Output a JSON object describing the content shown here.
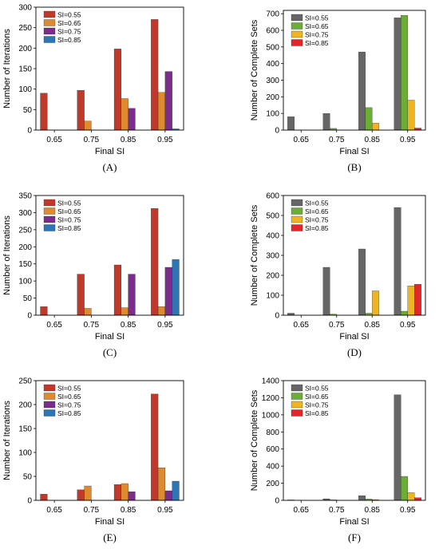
{
  "chart_data": [
    {
      "type": "bar",
      "panel": "(A)",
      "xlabel": "Final SI",
      "ylabel": "Number of Iterations",
      "categories": [
        "0.65",
        "0.75",
        "0.85",
        "0.95"
      ],
      "ylim": [
        0,
        300
      ],
      "yticks": [
        0,
        50,
        100,
        150,
        200,
        250,
        300
      ],
      "legend_position": "top-left",
      "series": [
        {
          "name": "SI=0.55",
          "color": "#C0392B",
          "values": [
            90,
            97,
            198,
            270
          ]
        },
        {
          "name": "SI=0.65",
          "color": "#E08A2E",
          "values": [
            0,
            22,
            77,
            92
          ]
        },
        {
          "name": "SI=0.75",
          "color": "#7B2D8E",
          "values": [
            0,
            0,
            53,
            143
          ]
        },
        {
          "name": "SI=0.85",
          "color": "#2E75B6",
          "values": [
            0,
            0,
            0,
            3
          ]
        }
      ]
    },
    {
      "type": "bar",
      "panel": "(B)",
      "xlabel": "Final SI",
      "ylabel": "Number of Complete Sets",
      "categories": [
        "0.65",
        "0.75",
        "0.85",
        "0.95"
      ],
      "ylim": [
        0,
        720
      ],
      "yticks": [
        0,
        100,
        200,
        300,
        400,
        500,
        600,
        700
      ],
      "legend_position": "top-left",
      "series": [
        {
          "name": "SI=0.55",
          "color": "#666666",
          "values": [
            80,
            100,
            470,
            675
          ]
        },
        {
          "name": "SI=0.65",
          "color": "#6AAE32",
          "values": [
            0,
            10,
            135,
            690
          ]
        },
        {
          "name": "SI=0.75",
          "color": "#F0B323",
          "values": [
            0,
            0,
            42,
            180
          ]
        },
        {
          "name": "SI=0.85",
          "color": "#E3262B",
          "values": [
            0,
            0,
            0,
            12
          ]
        }
      ]
    },
    {
      "type": "bar",
      "panel": "(C)",
      "xlabel": "Final SI",
      "ylabel": "Number of Iterations",
      "categories": [
        "0.65",
        "0.75",
        "0.85",
        "0.95"
      ],
      "ylim": [
        0,
        350
      ],
      "yticks": [
        0,
        50,
        100,
        150,
        200,
        250,
        300,
        350
      ],
      "legend_position": "top-left",
      "series": [
        {
          "name": "SI=0.55",
          "color": "#C0392B",
          "values": [
            25,
            120,
            147,
            312
          ]
        },
        {
          "name": "SI=0.65",
          "color": "#E08A2E",
          "values": [
            0,
            20,
            22,
            25
          ]
        },
        {
          "name": "SI=0.75",
          "color": "#7B2D8E",
          "values": [
            0,
            0,
            120,
            140
          ]
        },
        {
          "name": "SI=0.85",
          "color": "#2E75B6",
          "values": [
            0,
            0,
            0,
            163
          ]
        }
      ]
    },
    {
      "type": "bar",
      "panel": "(D)",
      "xlabel": "Final SI",
      "ylabel": "Number of Complete Sets",
      "categories": [
        "0.65",
        "0.75",
        "0.85",
        "0.95"
      ],
      "ylim": [
        0,
        600
      ],
      "yticks": [
        0,
        100,
        200,
        300,
        400,
        500,
        600
      ],
      "legend_position": "top-left",
      "series": [
        {
          "name": "SI=0.55",
          "color": "#666666",
          "values": [
            10,
            240,
            332,
            540
          ]
        },
        {
          "name": "SI=0.65",
          "color": "#6AAE32",
          "values": [
            0,
            5,
            10,
            20
          ]
        },
        {
          "name": "SI=0.75",
          "color": "#F0B323",
          "values": [
            0,
            0,
            122,
            147
          ]
        },
        {
          "name": "SI=0.85",
          "color": "#E3262B",
          "values": [
            0,
            0,
            0,
            155
          ]
        }
      ]
    },
    {
      "type": "bar",
      "panel": "(E)",
      "xlabel": "Final SI",
      "ylabel": "Number of Iterations",
      "categories": [
        "0.65",
        "0.75",
        "0.85",
        "0.95"
      ],
      "ylim": [
        0,
        250
      ],
      "yticks": [
        0,
        50,
        100,
        150,
        200,
        250
      ],
      "legend_position": "top-left",
      "series": [
        {
          "name": "SI=0.55",
          "color": "#C0392B",
          "values": [
            13,
            22,
            33,
            222
          ]
        },
        {
          "name": "SI=0.65",
          "color": "#E08A2E",
          "values": [
            0,
            30,
            35,
            68
          ]
        },
        {
          "name": "SI=0.75",
          "color": "#7B2D8E",
          "values": [
            0,
            0,
            18,
            20
          ]
        },
        {
          "name": "SI=0.85",
          "color": "#2E75B6",
          "values": [
            0,
            0,
            0,
            40
          ]
        }
      ]
    },
    {
      "type": "bar",
      "panel": "(F)",
      "xlabel": "Final SI",
      "ylabel": "Number of Complete Sets",
      "categories": [
        "0.65",
        "0.75",
        "0.85",
        "0.95"
      ],
      "ylim": [
        0,
        1400
      ],
      "yticks": [
        0,
        200,
        400,
        600,
        800,
        1000,
        1200,
        1400
      ],
      "legend_position": "top-left",
      "series": [
        {
          "name": "SI=0.55",
          "color": "#666666",
          "values": [
            5,
            18,
            55,
            1235
          ]
        },
        {
          "name": "SI=0.65",
          "color": "#6AAE32",
          "values": [
            0,
            5,
            15,
            280
          ]
        },
        {
          "name": "SI=0.75",
          "color": "#F0B323",
          "values": [
            0,
            0,
            8,
            90
          ]
        },
        {
          "name": "SI=0.85",
          "color": "#E3262B",
          "values": [
            0,
            0,
            0,
            30
          ]
        }
      ]
    }
  ]
}
